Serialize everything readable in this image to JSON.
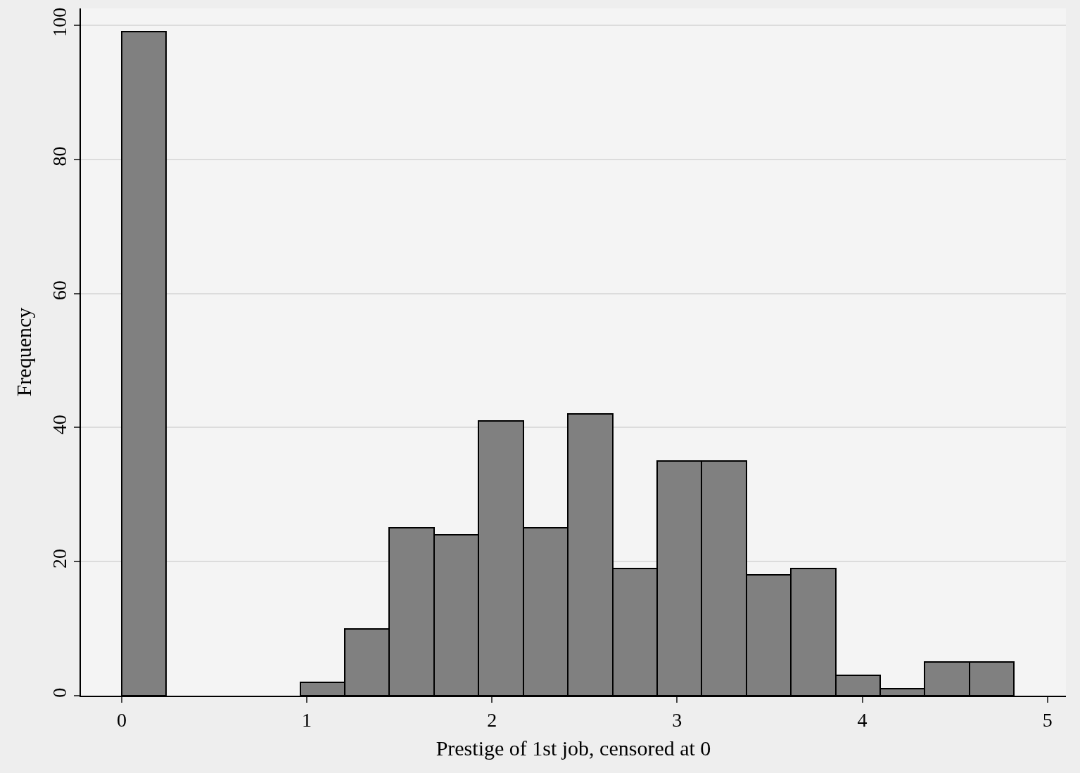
{
  "chart_data": {
    "type": "histogram",
    "xlabel": "Prestige of 1st job, censored at 0",
    "ylabel": "Frequency",
    "bins": [
      0,
      0.241,
      0.482,
      0.723,
      0.964,
      1.205,
      1.446,
      1.687,
      1.928,
      2.169,
      2.41,
      2.651,
      2.892,
      3.133,
      3.374,
      3.615,
      3.856,
      4.097,
      4.338,
      4.579,
      4.82
    ],
    "values": [
      99,
      0,
      0,
      0,
      2,
      10,
      25,
      24,
      41,
      25,
      42,
      19,
      35,
      35,
      18,
      19,
      3,
      1,
      5,
      5
    ],
    "color": "#808080",
    "xlim": [
      -0.22,
      5.1
    ],
    "xticks": [
      0,
      1,
      2,
      3,
      4,
      5
    ],
    "ylim": [
      0,
      102.5
    ],
    "yticks": [
      0,
      20,
      40,
      60,
      80,
      100
    ],
    "grid": "y"
  }
}
